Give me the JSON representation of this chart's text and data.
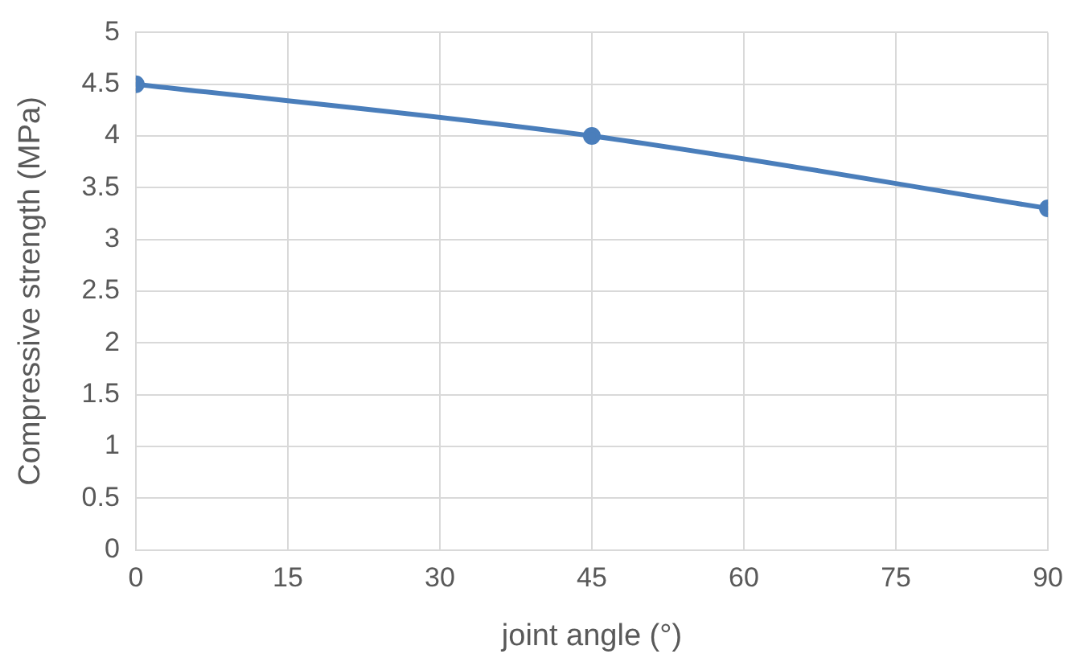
{
  "chart_data": {
    "type": "line",
    "xlabel": "joint angle (°)",
    "ylabel": "Compressive strength (MPa)",
    "x": [
      0,
      45,
      90
    ],
    "series": [
      {
        "color": "#4a7ebb",
        "values": [
          4.5,
          4.0,
          3.3
        ]
      }
    ],
    "xlim": [
      0,
      90
    ],
    "xticks": [
      0,
      15,
      30,
      45,
      60,
      75,
      90
    ],
    "ylim": [
      0,
      5
    ],
    "yticks": [
      0,
      0.5,
      1,
      1.5,
      2,
      2.5,
      3,
      3.5,
      4,
      4.5,
      5
    ],
    "grid": true,
    "marker": "circle",
    "line_style": "solid"
  }
}
